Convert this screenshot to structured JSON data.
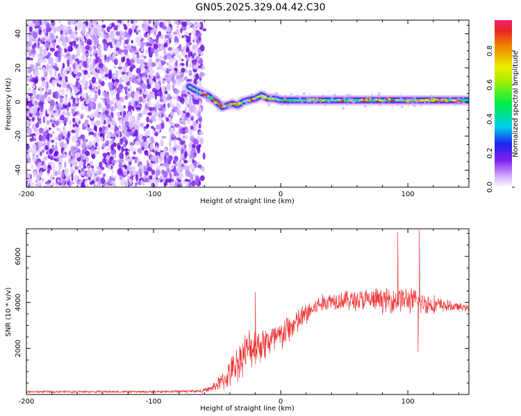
{
  "title": "GN05.2025.329.04.42.C30",
  "colors": {
    "snr_line": "#ee3333",
    "spectrum_noise": "#7f22ee",
    "axis": "#000000"
  },
  "chart_data": [
    {
      "type": "heatmap",
      "name": "spectrogram",
      "xlabel": "Height of straight line (km)",
      "ylabel": "Frequency (Hz)",
      "xlim": [
        -200,
        148
      ],
      "ylim": [
        -50,
        48
      ],
      "xticks": [
        "-200",
        "-100",
        "0",
        "100"
      ],
      "yticks": [
        "-40",
        "-20",
        "0",
        "20",
        "40"
      ],
      "xtick_values": [
        -200,
        -100,
        0,
        100
      ],
      "ytick_values": [
        -40,
        -20,
        0,
        20,
        40
      ],
      "noise_region_x": [
        -200,
        -62
      ],
      "signal_region_x": [
        -72,
        148
      ],
      "ridge": {
        "x": [
          -72,
          -65,
          -58,
          -52,
          -46,
          -42,
          -38,
          -34,
          -30,
          -26,
          -20,
          -15,
          -10,
          -5,
          0,
          10,
          20,
          40,
          60,
          80,
          100,
          120,
          148
        ],
        "freq": [
          9,
          6,
          4,
          1,
          -3,
          -2,
          -1,
          -2,
          0,
          1,
          2,
          4,
          2,
          2,
          1,
          1,
          1,
          1,
          1,
          1,
          1,
          1,
          1
        ]
      },
      "colorbar": {
        "label": "Normalized spectral amplitude",
        "ticks": [
          "0.0",
          "0.2",
          "0.4",
          "0.6",
          "0.8"
        ],
        "tick_values": [
          0.0,
          0.2,
          0.4,
          0.6,
          0.8
        ],
        "range": [
          0.0,
          0.98
        ]
      }
    },
    {
      "type": "line",
      "name": "snr",
      "xlabel": "Height of straight line (km)",
      "ylabel": "SNR (10 * v/v)",
      "xlim": [
        -200,
        148
      ],
      "ylim": [
        0,
        7200
      ],
      "xticks": [
        "-200",
        "-100",
        "0",
        "100"
      ],
      "yticks": [
        "2000",
        "4000",
        "6000"
      ],
      "xtick_values": [
        -200,
        -100,
        0,
        100
      ],
      "ytick_values": [
        2000,
        4000,
        6000
      ],
      "envelope": {
        "x": [
          -200,
          -100,
          -62,
          -55,
          -45,
          -40,
          -35,
          -30,
          -25,
          -20,
          -15,
          -10,
          -5,
          0,
          5,
          10,
          20,
          25,
          30,
          40,
          50,
          60,
          70,
          80,
          90,
          95,
          100,
          110,
          120,
          130,
          140,
          148
        ],
        "mean": [
          120,
          120,
          150,
          250,
          600,
          900,
          1300,
          1700,
          2000,
          2100,
          2200,
          2300,
          2400,
          2500,
          2800,
          3000,
          3500,
          3700,
          3900,
          4100,
          4100,
          4100,
          4100,
          4100,
          4100,
          4150,
          4100,
          4000,
          3900,
          3850,
          3800,
          3750
        ],
        "spread": [
          60,
          60,
          80,
          150,
          500,
          700,
          900,
          1000,
          1000,
          1000,
          900,
          900,
          900,
          800,
          800,
          700,
          600,
          500,
          450,
          450,
          500,
          550,
          600,
          600,
          650,
          650,
          650,
          600,
          500,
          300,
          200,
          150
        ]
      },
      "spikes": [
        {
          "x": -20,
          "y": 4450
        },
        {
          "x": 92,
          "y": 7050
        },
        {
          "x": 109,
          "y": 7150
        },
        {
          "x": 108,
          "y": 1850
        }
      ]
    }
  ]
}
